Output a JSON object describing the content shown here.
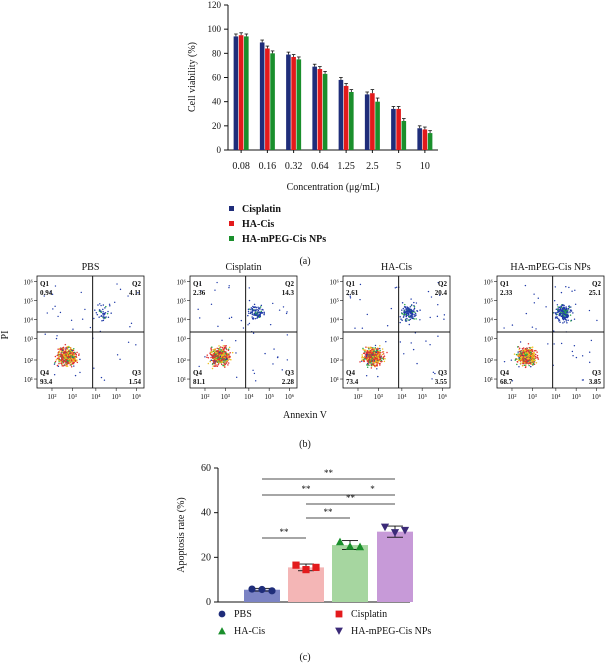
{
  "chart_data": [
    {
      "panel": "(a)",
      "type": "bar",
      "ylabel": "Cell viability (%)",
      "xlabel": "Concentration (μg/mL)",
      "ylim": [
        0,
        120
      ],
      "yticks": [
        "0",
        "20",
        "40",
        "60",
        "80",
        "100",
        "120"
      ],
      "categories": [
        "0.08",
        "0.16",
        "0.32",
        "0.64",
        "1.25",
        "2.5",
        "5",
        "10"
      ],
      "series": [
        {
          "name": "Cisplatin",
          "color": "#1f2d7a",
          "values": [
            94,
            89,
            79,
            69,
            58,
            46,
            34,
            18
          ]
        },
        {
          "name": "HA-Cis",
          "color": "#e31a1c",
          "values": [
            95,
            84,
            77,
            67,
            53,
            47,
            34,
            17
          ]
        },
        {
          "name": "HA-mPEG-Cis NPs",
          "color": "#1a8f2c",
          "values": [
            94,
            80,
            75,
            63,
            48,
            40,
            24,
            14
          ]
        }
      ],
      "errors": [
        [
          2,
          2,
          2,
          2,
          2,
          2,
          2,
          2
        ],
        [
          2,
          2,
          2,
          2,
          2,
          3,
          2,
          2
        ],
        [
          2,
          2,
          2,
          2,
          2,
          3,
          2,
          2
        ]
      ],
      "caption": "(a)"
    },
    {
      "panel": "(b)",
      "type": "scatter",
      "xlabel": "Annexin V",
      "ylabel": "PI",
      "axis_ticks": [
        "10²",
        "10³",
        "10⁴",
        "10⁵",
        "10⁶"
      ],
      "axis_ticks_y": [
        "10¹",
        "10²",
        "10³",
        "10⁴",
        "10⁵",
        "10⁶"
      ],
      "plots": [
        {
          "title": "PBS",
          "q1": "0.94",
          "q2": "4.11",
          "q3": "1.54",
          "q4": "93.4"
        },
        {
          "title": "Cisplatin",
          "q1": "2.36",
          "q2": "14.3",
          "q3": "2.28",
          "q4": "81.1"
        },
        {
          "title": "HA-Cis",
          "q1": "2.61",
          "q2": "20.4",
          "q3": "3.55",
          "q4": "73.4"
        },
        {
          "title": "HA-mPEG-Cis NPs",
          "q1": "2.33",
          "q2": "25.1",
          "q3": "3.85",
          "q4": "68.7"
        }
      ],
      "quadrant_names": [
        "Q1",
        "Q2",
        "Q3",
        "Q4"
      ],
      "caption": "(b)"
    },
    {
      "panel": "(c)",
      "type": "bar",
      "ylabel": "Apoptosis rate (%)",
      "ylim": [
        0,
        60
      ],
      "yticks": [
        "0",
        "20",
        "40",
        "60"
      ],
      "categories": [
        "PBS",
        "Cisplatin",
        "HA-Cis",
        "HA-mPEG-Cis NPs"
      ],
      "values": [
        5.5,
        15.5,
        25.5,
        31.5
      ],
      "errors": [
        0.6,
        1.5,
        2.0,
        2.5
      ],
      "points": [
        [
          5.8,
          5.6,
          5.0
        ],
        [
          16.5,
          14.5,
          15.5
        ],
        [
          27.0,
          25.0,
          24.8
        ],
        [
          33.5,
          31.0,
          32.0
        ]
      ],
      "bar_colors": [
        "#7b83c4",
        "#f4b6b6",
        "#a6d6a0",
        "#c79ad8"
      ],
      "marker_colors": [
        "#1f2d7a",
        "#e31a1c",
        "#1a8f2c",
        "#3b2a78"
      ],
      "markers": [
        "circle",
        "square",
        "triangle-up",
        "triangle-down"
      ],
      "significance": [
        {
          "from": 0,
          "to": 3,
          "label": "**"
        },
        {
          "from": 0,
          "to": 2,
          "label": "**"
        },
        {
          "from": 2,
          "to": 3,
          "label": "*"
        },
        {
          "from": 1,
          "to": 3,
          "label": "**"
        },
        {
          "from": 1,
          "to": 2,
          "label": "**"
        },
        {
          "from": 0,
          "to": 1,
          "label": "**"
        }
      ],
      "legend": [
        "PBS",
        "Cisplatin",
        "HA-Cis",
        "HA-mPEG-Cis NPs"
      ],
      "caption": "(c)"
    }
  ]
}
